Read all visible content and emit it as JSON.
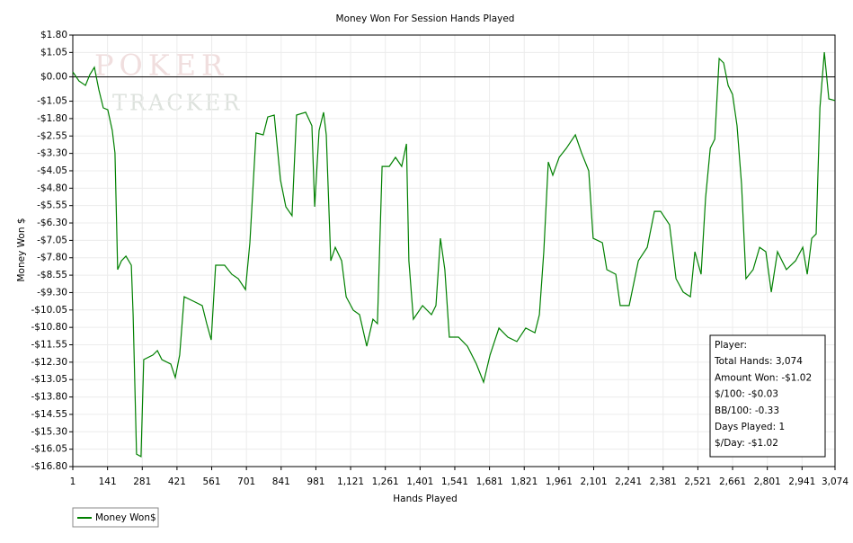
{
  "chart_data": {
    "type": "line",
    "title": "Money Won For Session Hands Played",
    "xlabel": "Hands Played",
    "ylabel": "Money Won $",
    "watermark": [
      "POKER",
      "TRACKER"
    ],
    "x": [
      1,
      26,
      52,
      70,
      88,
      106,
      124,
      142,
      160,
      171,
      182,
      197,
      215,
      237,
      244,
      258,
      276,
      287,
      324,
      342,
      360,
      396,
      414,
      432,
      450,
      487,
      523,
      541,
      559,
      577,
      613,
      642,
      668,
      697,
      715,
      740,
      769,
      787,
      813,
      838,
      860,
      885,
      903,
      940,
      965,
      976,
      994,
      1012,
      1023,
      1041,
      1059,
      1085,
      1103,
      1132,
      1157,
      1186,
      1211,
      1229,
      1248,
      1277,
      1302,
      1327,
      1346,
      1356,
      1374,
      1411,
      1447,
      1465,
      1483,
      1501,
      1519,
      1556,
      1592,
      1628,
      1657,
      1683,
      1719,
      1755,
      1791,
      1827,
      1864,
      1882,
      1900,
      1918,
      1936,
      1962,
      1991,
      2027,
      2052,
      2081,
      2099,
      2136,
      2154,
      2190,
      2208,
      2244,
      2281,
      2317,
      2346,
      2371,
      2407,
      2433,
      2462,
      2491,
      2509,
      2534,
      2552,
      2571,
      2589,
      2607,
      2625,
      2643,
      2661,
      2679,
      2697,
      2715,
      2744,
      2770,
      2795,
      2817,
      2842,
      2878,
      2915,
      2944,
      2962,
      2980,
      2998,
      3013,
      3031,
      3049,
      3074
    ],
    "series": [
      {
        "name": "Money Won$",
        "color": "#008000",
        "values": [
          0.21,
          -0.18,
          -0.37,
          0.1,
          0.41,
          -0.56,
          -1.34,
          -1.42,
          -2.31,
          -3.28,
          -8.31,
          -7.93,
          -7.73,
          -8.12,
          -10.25,
          -16.26,
          -16.37,
          -12.19,
          -11.99,
          -11.8,
          -12.19,
          -12.38,
          -12.96,
          -11.99,
          -9.48,
          -9.67,
          -9.86,
          -10.64,
          -11.34,
          -8.12,
          -8.12,
          -8.51,
          -8.7,
          -9.17,
          -7.15,
          -2.42,
          -2.5,
          -1.73,
          -1.65,
          -4.44,
          -5.6,
          -5.99,
          -1.65,
          -1.53,
          -2.11,
          -5.6,
          -2.31,
          -1.53,
          -2.5,
          -7.93,
          -7.35,
          -7.93,
          -9.48,
          -10.06,
          -10.25,
          -11.61,
          -10.45,
          -10.64,
          -3.86,
          -3.86,
          -3.47,
          -3.86,
          -2.89,
          -7.93,
          -10.45,
          -9.86,
          -10.25,
          -9.86,
          -6.96,
          -8.31,
          -11.22,
          -11.22,
          -11.61,
          -12.38,
          -13.16,
          -11.99,
          -10.83,
          -11.22,
          -11.41,
          -10.83,
          -11.03,
          -10.25,
          -7.54,
          -3.67,
          -4.24,
          -3.47,
          -3.08,
          -2.5,
          -3.28,
          -4.05,
          -6.96,
          -7.15,
          -8.31,
          -8.51,
          -9.86,
          -9.86,
          -7.93,
          -7.35,
          -5.8,
          -5.8,
          -6.38,
          -8.7,
          -9.28,
          -9.48,
          -7.54,
          -8.51,
          -5.21,
          -3.08,
          -2.69,
          0.79,
          0.6,
          -0.37,
          -0.76,
          -2.11,
          -4.63,
          -8.7,
          -8.31,
          -7.35,
          -7.54,
          -9.28,
          -7.54,
          -8.31,
          -7.93,
          -7.35,
          -8.51,
          -6.96,
          -6.77,
          -1.34,
          1.06,
          -0.95,
          -1.02
        ]
      }
    ],
    "xlim": [
      1,
      3074
    ],
    "ylim": [
      -16.8,
      1.8
    ],
    "xticks": [
      1,
      141,
      281,
      421,
      561,
      701,
      841,
      981,
      {
        "value": 1121,
        "label": "1,121"
      },
      {
        "value": 1261,
        "label": "1,261"
      },
      {
        "value": 1401,
        "label": "1,401"
      },
      {
        "value": 1541,
        "label": "1,541"
      },
      {
        "value": 1681,
        "label": "1,681"
      },
      {
        "value": 1821,
        "label": "1,821"
      },
      {
        "value": 1961,
        "label": "1,961"
      },
      {
        "value": 2101,
        "label": "2,101"
      },
      {
        "value": 2241,
        "label": "2,241"
      },
      {
        "value": 2381,
        "label": "2,381"
      },
      {
        "value": 2521,
        "label": "2,521"
      },
      {
        "value": 2661,
        "label": "2,661"
      },
      {
        "value": 2801,
        "label": "2,801"
      },
      {
        "value": 2941,
        "label": "2,941"
      },
      {
        "value": 3074,
        "label": "3,074"
      }
    ],
    "yticks": [
      {
        "value": 1.8,
        "label": "$1.80"
      },
      {
        "value": 1.05,
        "label": "$1.05"
      },
      {
        "value": 0,
        "label": "$0.00"
      },
      {
        "value": -1.05,
        "label": "-$1.05"
      },
      {
        "value": -1.8,
        "label": "-$1.80"
      },
      {
        "value": -2.55,
        "label": "-$2.55"
      },
      {
        "value": -3.3,
        "label": "-$3.30"
      },
      {
        "value": -4.05,
        "label": "-$4.05"
      },
      {
        "value": -4.8,
        "label": "-$4.80"
      },
      {
        "value": -5.55,
        "label": "-$5.55"
      },
      {
        "value": -6.3,
        "label": "-$6.30"
      },
      {
        "value": -7.05,
        "label": "-$7.05"
      },
      {
        "value": -7.8,
        "label": "-$7.80"
      },
      {
        "value": -8.55,
        "label": "-$8.55"
      },
      {
        "value": -9.3,
        "label": "-$9.30"
      },
      {
        "value": -10.05,
        "label": "-$10.05"
      },
      {
        "value": -10.8,
        "label": "-$10.80"
      },
      {
        "value": -11.55,
        "label": "-$11.55"
      },
      {
        "value": -12.3,
        "label": "-$12.30"
      },
      {
        "value": -13.05,
        "label": "-$13.05"
      },
      {
        "value": -13.8,
        "label": "-$13.80"
      },
      {
        "value": -14.55,
        "label": "-$14.55"
      },
      {
        "value": -15.3,
        "label": "-$15.30"
      },
      {
        "value": -16.05,
        "label": "-$16.05"
      },
      {
        "value": -16.8,
        "label": "-$16.80"
      }
    ],
    "grid": true,
    "reference_line": 0,
    "stats": [
      "Player:",
      "Total Hands: 3,074",
      "Amount Won: -$1.02",
      "$/100: -$0.03",
      "BB/100: -0.33",
      "Days Played: 1",
      "$/Day: -$1.02"
    ]
  }
}
